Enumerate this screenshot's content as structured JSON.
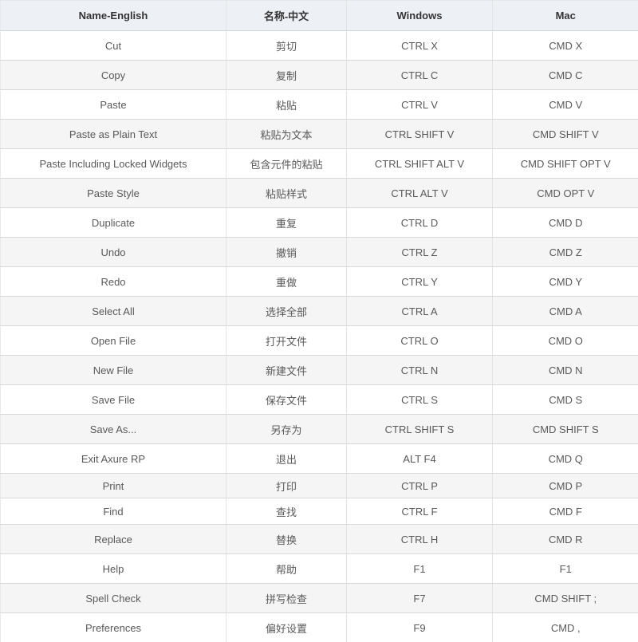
{
  "colors": {
    "header_bg": "#edf1f5",
    "stripe_bg": "#f5f5f6",
    "row_border": "#d8d8d8",
    "column_border": "#e3e3e3",
    "header_text": "#333333",
    "body_text": "#595959"
  },
  "table": {
    "columns": [
      "Name-English",
      "名称-中文",
      "Windows",
      "Mac"
    ],
    "rows": [
      {
        "en": "Cut",
        "zh": "剪切",
        "win": "CTRL X",
        "mac": "CMD X"
      },
      {
        "en": "Copy",
        "zh": "复制",
        "win": "CTRL C",
        "mac": "CMD C"
      },
      {
        "en": "Paste",
        "zh": "粘贴",
        "win": "CTRL V",
        "mac": "CMD V"
      },
      {
        "en": "Paste as Plain Text",
        "zh": "粘贴为文本",
        "win": "CTRL SHIFT V",
        "mac": "CMD SHIFT V"
      },
      {
        "en": "Paste Including Locked Widgets",
        "zh": "包含元件的粘贴",
        "win": "CTRL SHIFT ALT V",
        "mac": "CMD SHIFT OPT V"
      },
      {
        "en": "Paste Style",
        "zh": "粘贴样式",
        "win": "CTRL ALT V",
        "mac": "CMD OPT V"
      },
      {
        "en": "Duplicate",
        "zh": "重复",
        "win": "CTRL D",
        "mac": "CMD D"
      },
      {
        "en": "Undo",
        "zh": "撤销",
        "win": "CTRL Z",
        "mac": "CMD Z"
      },
      {
        "en": "Redo",
        "zh": "重做",
        "win": "CTRL Y",
        "mac": "CMD Y"
      },
      {
        "en": "Select All",
        "zh": "选择全部",
        "win": "CTRL A",
        "mac": "CMD A"
      },
      {
        "en": "Open File",
        "zh": "打开文件",
        "win": "CTRL O",
        "mac": "CMD O"
      },
      {
        "en": "New File",
        "zh": "新建文件",
        "win": "CTRL N",
        "mac": "CMD N"
      },
      {
        "en": "Save File",
        "zh": "保存文件",
        "win": "CTRL S",
        "mac": "CMD S"
      },
      {
        "en": "Save As...",
        "zh": "另存为",
        "win": "CTRL SHIFT S",
        "mac": "CMD SHIFT S"
      },
      {
        "en": "Exit Axure RP",
        "zh": "退出",
        "win": "ALT F4",
        "mac": "CMD Q"
      },
      {
        "en": "Print",
        "zh": "打印",
        "win": "CTRL P",
        "mac": "CMD P"
      },
      {
        "en": "Find",
        "zh": "查找",
        "win": "CTRL F",
        "mac": "CMD F"
      },
      {
        "en": "Replace",
        "zh": "替换",
        "win": "CTRL H",
        "mac": "CMD R"
      },
      {
        "en": "Help",
        "zh": "帮助",
        "win": "F1",
        "mac": "F1"
      },
      {
        "en": "Spell Check",
        "zh": "拼写检查",
        "win": "F7",
        "mac": "CMD SHIFT ;"
      },
      {
        "en": "Preferences",
        "zh": "偏好设置",
        "win": "F9",
        "mac": "CMD ,"
      }
    ]
  }
}
